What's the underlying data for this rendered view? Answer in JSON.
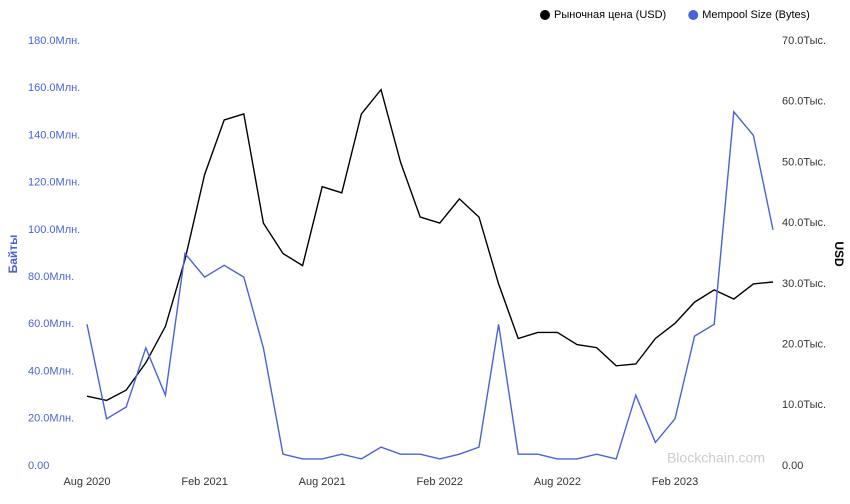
{
  "chart_data": {
    "type": "line",
    "watermark": "Blockchain.com",
    "x": [
      "2020-08",
      "2020-09",
      "2020-10",
      "2020-11",
      "2020-12",
      "2021-01",
      "2021-02",
      "2021-03",
      "2021-04",
      "2021-05",
      "2021-06",
      "2021-07",
      "2021-08",
      "2021-09",
      "2021-10",
      "2021-11",
      "2021-12",
      "2022-01",
      "2022-02",
      "2022-03",
      "2022-04",
      "2022-05",
      "2022-06",
      "2022-07",
      "2022-08",
      "2022-09",
      "2022-10",
      "2022-11",
      "2022-12",
      "2023-01",
      "2023-02",
      "2023-03",
      "2023-04",
      "2023-05",
      "2023-06",
      "2023-07"
    ],
    "xlim": [
      "2020-08",
      "2023-07"
    ],
    "xticks": [
      {
        "value": "2020-08",
        "label": "Aug 2020"
      },
      {
        "value": "2021-02",
        "label": "Feb 2021"
      },
      {
        "value": "2021-08",
        "label": "Aug 2021"
      },
      {
        "value": "2022-02",
        "label": "Feb 2022"
      },
      {
        "value": "2022-08",
        "label": "Aug 2022"
      },
      {
        "value": "2023-02",
        "label": "Feb 2023"
      }
    ],
    "ylabel": "Байты",
    "y2label": "USD",
    "ylim": [
      0,
      180000000
    ],
    "yticks": [
      {
        "value": 0,
        "label": "0.00"
      },
      {
        "value": 20000000,
        "label": "20.0Млн."
      },
      {
        "value": 40000000,
        "label": "40.0Млн."
      },
      {
        "value": 60000000,
        "label": "60.0Млн."
      },
      {
        "value": 80000000,
        "label": "80.0Млн."
      },
      {
        "value": 100000000,
        "label": "100.0Млн."
      },
      {
        "value": 120000000,
        "label": "120.0Млн."
      },
      {
        "value": 140000000,
        "label": "140.0Млн."
      },
      {
        "value": 160000000,
        "label": "160.0Млн."
      },
      {
        "value": 180000000,
        "label": "180.0Млн."
      }
    ],
    "y2lim": [
      0,
      70000
    ],
    "y2ticks": [
      {
        "value": 0,
        "label": "0.00"
      },
      {
        "value": 10000,
        "label": "10.0Тыс."
      },
      {
        "value": 20000,
        "label": "20.0Тыс."
      },
      {
        "value": 30000,
        "label": "30.0Тыс."
      },
      {
        "value": 40000,
        "label": "40.0Тыс."
      },
      {
        "value": 50000,
        "label": "50.0Тыс."
      },
      {
        "value": 60000,
        "label": "60.0Тыс."
      },
      {
        "value": 70000,
        "label": "70.0Тыс."
      }
    ],
    "legend": "top-right",
    "series": [
      {
        "name": "Рыночная цена (USD)",
        "color": "#000000",
        "axis": "y2",
        "values": [
          11500,
          10800,
          12500,
          17000,
          23000,
          34000,
          48000,
          57000,
          58000,
          40000,
          35000,
          33000,
          46000,
          45000,
          58000,
          62000,
          50000,
          41000,
          40000,
          44000,
          41000,
          30000,
          21000,
          22000,
          22000,
          20000,
          19500,
          16500,
          16800,
          21000,
          23500,
          27000,
          29000,
          27500,
          30000,
          30300
        ]
      },
      {
        "name": "Mempool Size (Bytes)",
        "color": "#4a62d8",
        "axis": "y",
        "values": [
          60000000,
          20000000,
          25000000,
          50000000,
          30000000,
          90000000,
          80000000,
          85000000,
          80000000,
          50000000,
          5000000,
          3000000,
          3000000,
          5000000,
          3000000,
          8000000,
          5000000,
          5000000,
          3000000,
          5000000,
          8000000,
          60000000,
          5000000,
          5000000,
          3000000,
          3000000,
          5000000,
          3000000,
          30000000,
          10000000,
          20000000,
          55000000,
          60000000,
          150000000,
          140000000,
          100000000
        ]
      }
    ]
  }
}
